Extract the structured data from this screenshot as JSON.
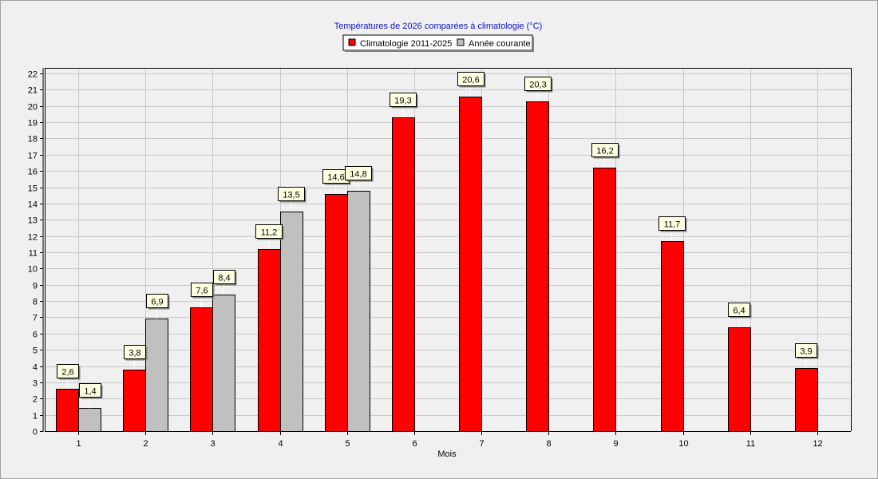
{
  "chart_data": {
    "type": "bar",
    "title": "Températures de 2026 comparées à climatologie (°C)",
    "xlabel": "Mois",
    "ylabel": "",
    "categories": [
      "1",
      "2",
      "3",
      "4",
      "5",
      "6",
      "7",
      "8",
      "9",
      "10",
      "11",
      "12"
    ],
    "ylim": [
      0,
      22
    ],
    "ytick_step": 1,
    "grid": true,
    "legend_position": "top-center",
    "series": [
      {
        "name": "Climatologie 2011-2025",
        "color": "#ff0000",
        "values": [
          2.6,
          3.8,
          7.6,
          11.2,
          14.6,
          19.3,
          20.6,
          20.3,
          16.2,
          11.7,
          6.4,
          3.9
        ],
        "labels": [
          "2,6",
          "3,8",
          "7,6",
          "11,2",
          "14,6",
          "19,3",
          "20,6",
          "20,3",
          "16,2",
          "11,7",
          "6,4",
          "3,9"
        ]
      },
      {
        "name": "Année courante",
        "color": "#c0c0c0",
        "values": [
          1.4,
          6.9,
          8.4,
          13.5,
          14.8,
          null,
          null,
          null,
          null,
          null,
          null,
          null
        ],
        "labels": [
          "1,4",
          "6,9",
          "8,4",
          "13,5",
          "14,8",
          "",
          "",
          "",
          "",
          "",
          "",
          ""
        ]
      }
    ]
  }
}
